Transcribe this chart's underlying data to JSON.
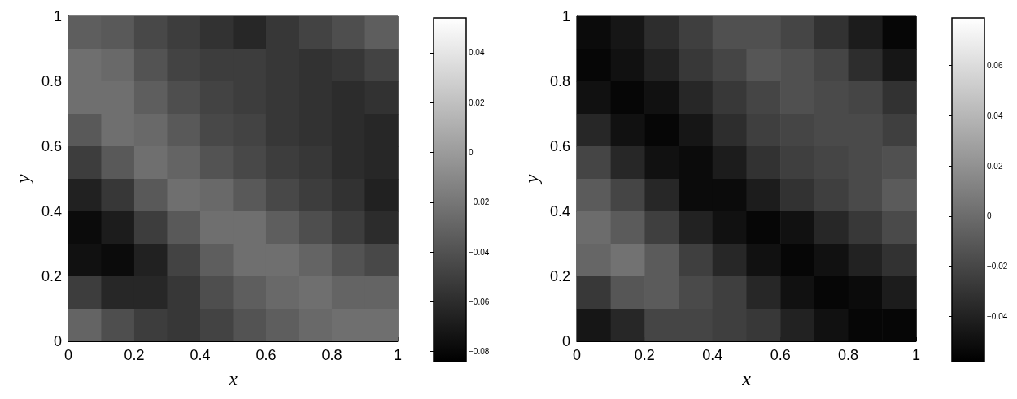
{
  "chart_data": [
    {
      "type": "heatmap",
      "xlabel": "x",
      "ylabel": "y",
      "xlim": [
        0,
        1
      ],
      "ylim": [
        0,
        1
      ],
      "xticks": [
        0,
        0.2,
        0.4,
        0.6,
        0.8,
        1
      ],
      "yticks": [
        0,
        0.2,
        0.4,
        0.6,
        0.8,
        1
      ],
      "clim": [
        -0.084,
        0.054
      ],
      "cticks": [
        -0.08,
        -0.06,
        -0.04,
        -0.02,
        0,
        0.02,
        0.04
      ],
      "cells": [
        [
          -0.033,
          -0.036,
          -0.045,
          -0.051,
          -0.057,
          -0.063,
          -0.054,
          -0.048,
          -0.042,
          -0.033
        ],
        [
          -0.024,
          -0.027,
          -0.039,
          -0.048,
          -0.051,
          -0.051,
          -0.054,
          -0.057,
          -0.054,
          -0.048
        ],
        [
          -0.024,
          -0.024,
          -0.033,
          -0.042,
          -0.048,
          -0.051,
          -0.054,
          -0.057,
          -0.06,
          -0.057
        ],
        [
          -0.036,
          -0.024,
          -0.027,
          -0.036,
          -0.045,
          -0.048,
          -0.054,
          -0.057,
          -0.06,
          -0.063
        ],
        [
          -0.051,
          -0.036,
          -0.024,
          -0.03,
          -0.039,
          -0.045,
          -0.051,
          -0.054,
          -0.06,
          -0.063
        ],
        [
          -0.066,
          -0.054,
          -0.036,
          -0.024,
          -0.027,
          -0.036,
          -0.045,
          -0.051,
          -0.057,
          -0.066
        ],
        [
          -0.078,
          -0.069,
          -0.051,
          -0.036,
          -0.024,
          -0.024,
          -0.033,
          -0.042,
          -0.051,
          -0.06
        ],
        [
          -0.075,
          -0.078,
          -0.066,
          -0.048,
          -0.033,
          -0.024,
          -0.024,
          -0.03,
          -0.039,
          -0.045
        ],
        [
          -0.051,
          -0.063,
          -0.063,
          -0.054,
          -0.042,
          -0.033,
          -0.027,
          -0.024,
          -0.03,
          -0.03
        ],
        [
          -0.03,
          -0.042,
          -0.051,
          -0.054,
          -0.048,
          -0.039,
          -0.033,
          -0.027,
          -0.024,
          -0.024
        ]
      ]
    },
    {
      "type": "heatmap",
      "xlabel": "x",
      "ylabel": "y",
      "xlim": [
        0,
        1
      ],
      "ylim": [
        0,
        1
      ],
      "xticks": [
        0,
        0.2,
        0.4,
        0.6,
        0.8,
        1
      ],
      "yticks": [
        0,
        0.2,
        0.4,
        0.6,
        0.8,
        1
      ],
      "clim": [
        -0.058,
        0.079
      ],
      "cticks": [
        -0.04,
        -0.02,
        0,
        0.02,
        0.04,
        0.06
      ],
      "cells": [
        [
          -0.052,
          -0.046,
          -0.034,
          -0.024,
          -0.015,
          -0.015,
          -0.021,
          -0.031,
          -0.043,
          -0.055
        ],
        [
          -0.055,
          -0.049,
          -0.04,
          -0.028,
          -0.021,
          -0.012,
          -0.015,
          -0.021,
          -0.034,
          -0.046
        ],
        [
          -0.049,
          -0.055,
          -0.049,
          -0.037,
          -0.028,
          -0.021,
          -0.015,
          -0.018,
          -0.021,
          -0.031
        ],
        [
          -0.037,
          -0.049,
          -0.055,
          -0.046,
          -0.034,
          -0.024,
          -0.021,
          -0.018,
          -0.018,
          -0.024
        ],
        [
          -0.021,
          -0.037,
          -0.049,
          -0.052,
          -0.043,
          -0.031,
          -0.024,
          -0.021,
          -0.018,
          -0.015
        ],
        [
          -0.009,
          -0.021,
          -0.037,
          -0.052,
          -0.052,
          -0.043,
          -0.031,
          -0.024,
          -0.018,
          -0.009
        ],
        [
          0,
          -0.009,
          -0.024,
          -0.04,
          -0.049,
          -0.055,
          -0.049,
          -0.037,
          -0.028,
          -0.018
        ],
        [
          -0.003,
          0.003,
          -0.009,
          -0.024,
          -0.037,
          -0.049,
          -0.055,
          -0.049,
          -0.04,
          -0.031
        ],
        [
          -0.028,
          -0.012,
          -0.009,
          -0.018,
          -0.024,
          -0.037,
          -0.049,
          -0.055,
          -0.052,
          -0.043
        ],
        [
          -0.046,
          -0.037,
          -0.021,
          -0.021,
          -0.024,
          -0.028,
          -0.04,
          -0.049,
          -0.055,
          -0.055
        ]
      ]
    }
  ]
}
